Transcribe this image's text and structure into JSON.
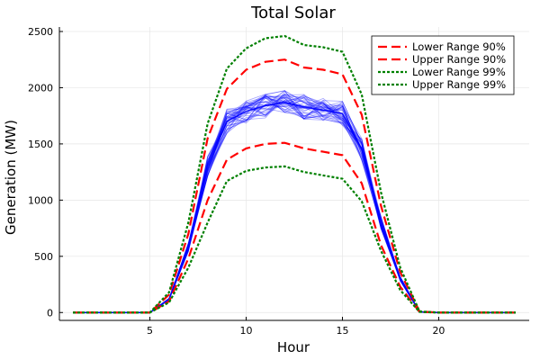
{
  "chart_data": {
    "type": "line",
    "title": "Total Solar",
    "xlabel": "Hour",
    "ylabel": "Generation (MW)",
    "xlim": [
      0.3,
      24.7
    ],
    "ylim": [
      -70,
      2540
    ],
    "xticks": [
      5,
      10,
      15,
      20
    ],
    "yticks": [
      0,
      500,
      1000,
      1500,
      2000,
      2500
    ],
    "grid": true,
    "legend_position": "top-right",
    "x": [
      1,
      2,
      3,
      4,
      5,
      6,
      7,
      8,
      9,
      10,
      11,
      12,
      13,
      14,
      15,
      16,
      17,
      18,
      19,
      20,
      21,
      22,
      23,
      24
    ],
    "ensemble_mean": [
      0,
      0,
      0,
      0,
      0,
      120,
      580,
      1300,
      1700,
      1790,
      1840,
      1870,
      1830,
      1800,
      1770,
      1450,
      800,
      300,
      5,
      0,
      0,
      0,
      0,
      0
    ],
    "ensemble_color": "#0000ff",
    "series": [
      {
        "name": "Lower Range 90%",
        "color": "#ff0000",
        "dash": "dashed",
        "values": [
          0,
          0,
          0,
          0,
          0,
          100,
          480,
          1000,
          1360,
          1460,
          1500,
          1510,
          1460,
          1430,
          1400,
          1150,
          600,
          230,
          5,
          0,
          0,
          0,
          0,
          0
        ]
      },
      {
        "name": "Upper Range 90%",
        "color": "#ff0000",
        "dash": "dashed",
        "values": [
          0,
          0,
          0,
          0,
          0,
          160,
          700,
          1550,
          1990,
          2160,
          2230,
          2250,
          2180,
          2160,
          2120,
          1760,
          950,
          360,
          10,
          0,
          0,
          0,
          0,
          0
        ]
      },
      {
        "name": "Lower Range 99%",
        "color": "#008000",
        "dash": "dotted",
        "values": [
          0,
          0,
          0,
          0,
          0,
          90,
          400,
          800,
          1170,
          1260,
          1290,
          1300,
          1250,
          1220,
          1190,
          990,
          550,
          200,
          5,
          0,
          0,
          0,
          0,
          0
        ]
      },
      {
        "name": "Upper Range 99%",
        "color": "#008000",
        "dash": "dotted",
        "values": [
          0,
          0,
          0,
          0,
          0,
          180,
          800,
          1680,
          2170,
          2350,
          2440,
          2460,
          2380,
          2360,
          2320,
          1940,
          1070,
          400,
          10,
          0,
          0,
          0,
          0,
          0
        ]
      }
    ]
  }
}
